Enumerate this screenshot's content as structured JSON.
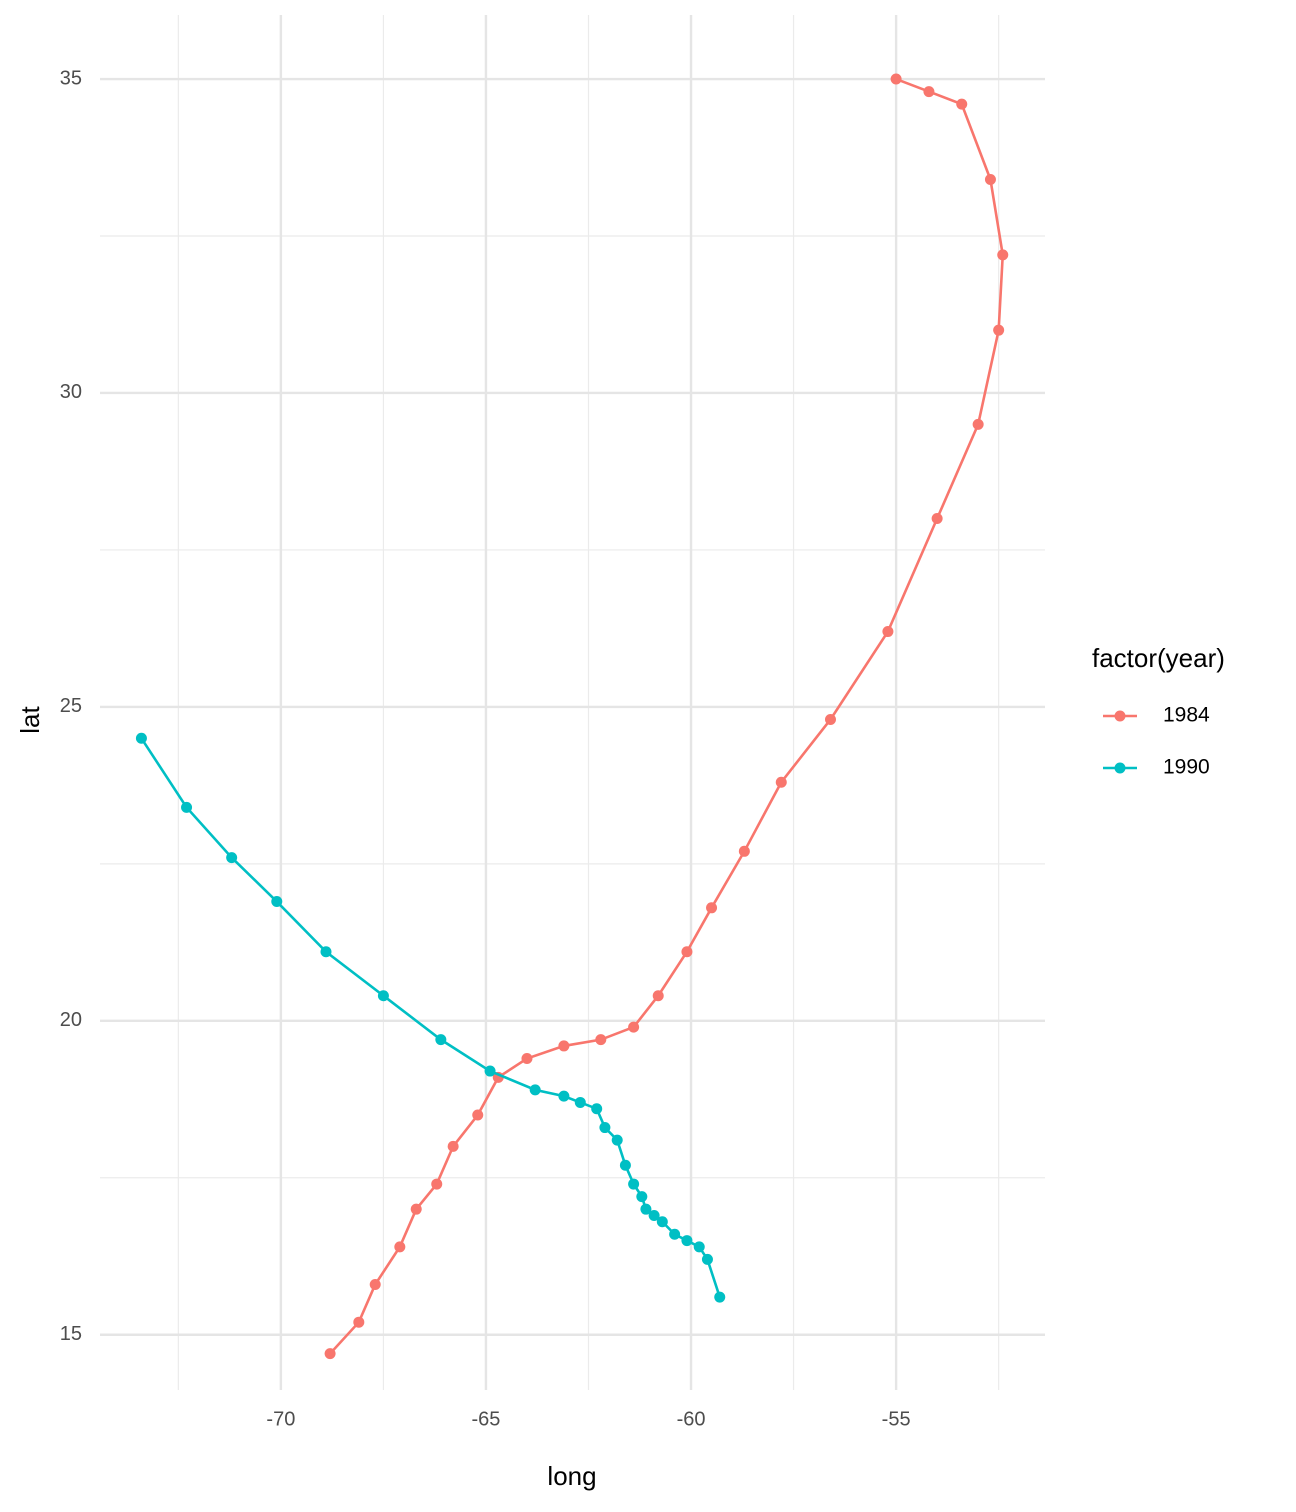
{
  "chart_data": {
    "type": "line",
    "markers": true,
    "grid": true,
    "x_label": "long",
    "y_label": "lat",
    "legend_title": "factor(year)",
    "legend_position": "right",
    "xlim": [
      -74.41,
      -51.37
    ],
    "xticks": [
      -70,
      -65,
      -60,
      -55
    ],
    "ylim": [
      14.12,
      36.02
    ],
    "yticks": [
      15,
      20,
      25,
      30,
      35
    ],
    "series": [
      {
        "name": "1984",
        "color": "#F8766D",
        "x": [
          -68.8,
          -68.1,
          -67.7,
          -67.1,
          -66.7,
          -66.2,
          -65.8,
          -65.2,
          -64.7,
          -64.0,
          -63.1,
          -62.2,
          -61.4,
          -60.8,
          -60.1,
          -59.5,
          -58.7,
          -57.8,
          -56.6,
          -55.2,
          -54.0,
          -53.0,
          -52.5,
          -52.4,
          -52.7,
          -53.4,
          -54.2,
          -55.0
        ],
        "values": [
          14.7,
          15.2,
          15.8,
          16.4,
          17.0,
          17.4,
          18.0,
          18.5,
          19.1,
          19.4,
          19.6,
          19.7,
          19.9,
          20.4,
          21.1,
          21.8,
          22.7,
          23.8,
          24.8,
          26.2,
          28.0,
          29.5,
          31.0,
          32.2,
          33.4,
          34.6,
          34.8,
          35.0
        ]
      },
      {
        "name": "1990",
        "color": "#00BFC4",
        "x": [
          -73.4,
          -72.3,
          -71.2,
          -70.1,
          -68.9,
          -67.5,
          -66.1,
          -64.9,
          -63.8,
          -63.1,
          -62.7,
          -62.3,
          -62.1,
          -61.8,
          -61.6,
          -61.4,
          -61.2,
          -61.1,
          -60.9,
          -60.7,
          -60.4,
          -60.1,
          -59.8,
          -59.6,
          -59.3
        ],
        "values": [
          24.5,
          23.4,
          22.6,
          21.9,
          21.1,
          20.4,
          19.7,
          19.2,
          18.9,
          18.8,
          18.7,
          18.6,
          18.3,
          18.1,
          17.7,
          17.4,
          17.2,
          17.0,
          16.9,
          16.8,
          16.6,
          16.5,
          16.4,
          16.2,
          15.6
        ]
      }
    ]
  }
}
